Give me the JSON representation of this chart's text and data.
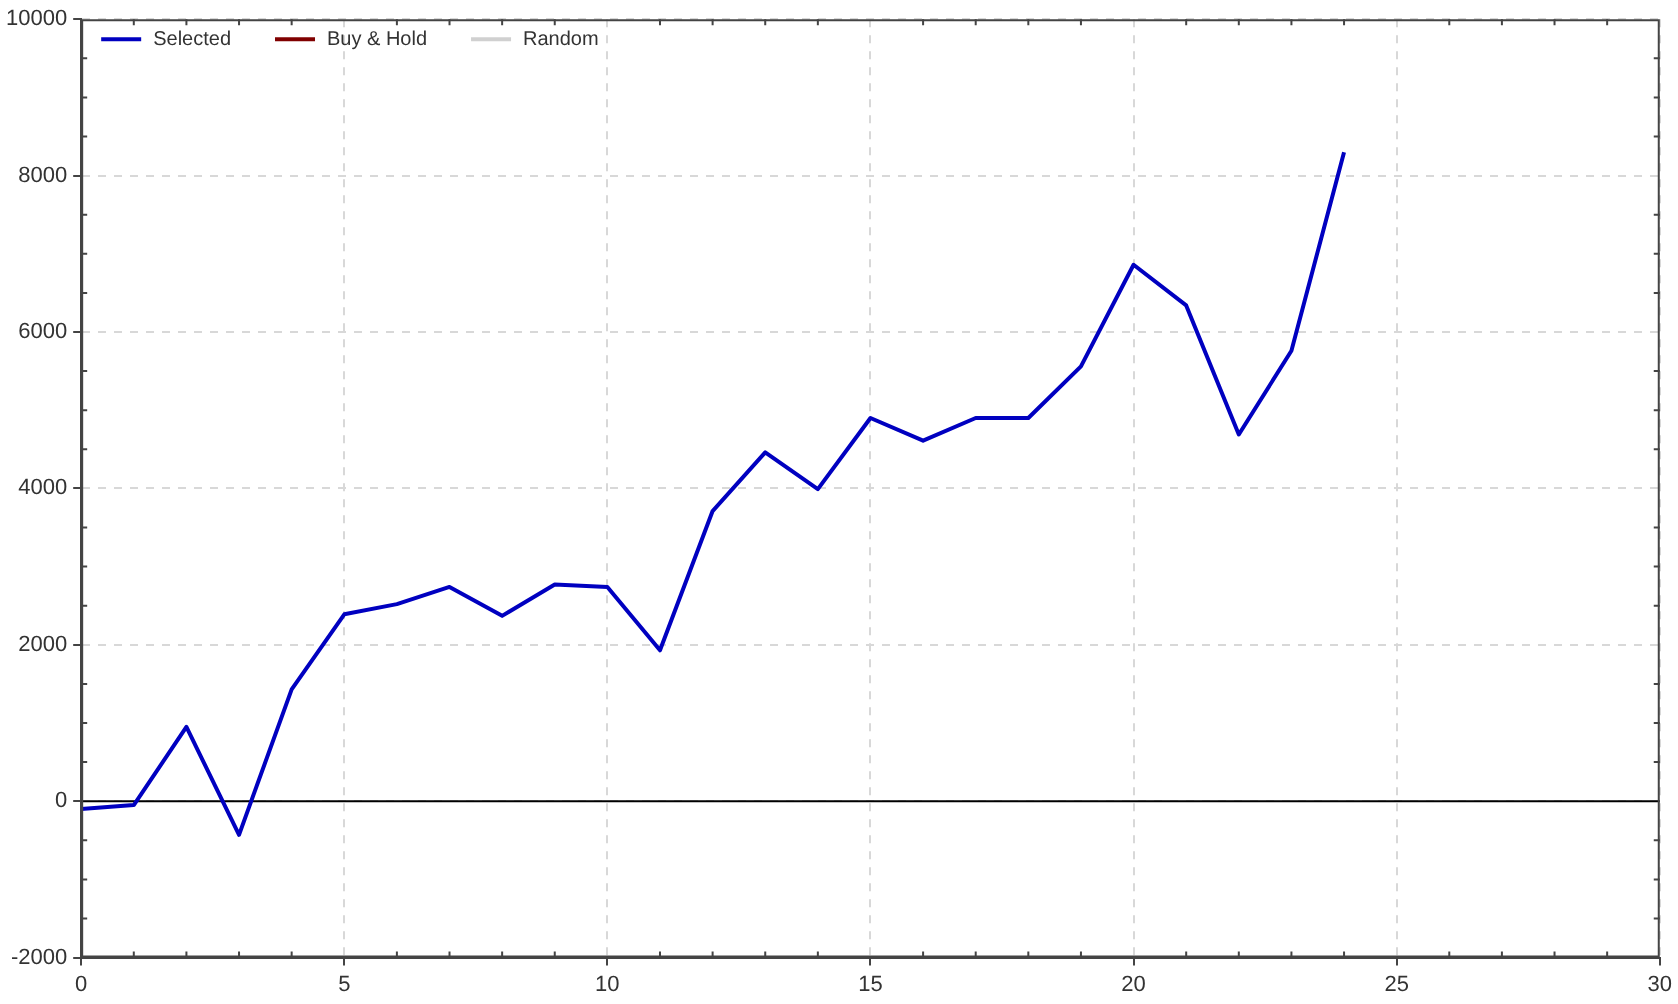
{
  "chart_data": {
    "type": "line",
    "x": [
      0,
      1,
      2,
      3,
      4,
      5,
      6,
      7,
      8,
      9,
      10,
      11,
      12,
      13,
      14,
      15,
      16,
      17,
      18,
      19,
      20,
      21,
      22,
      23,
      24
    ],
    "series": [
      {
        "name": "Selected",
        "color": "#0000c0",
        "values": [
          -100,
          -50,
          950,
          -430,
          1430,
          2390,
          2520,
          2740,
          2370,
          2770,
          2740,
          1930,
          3710,
          4460,
          3990,
          4900,
          4610,
          4900,
          4900,
          5560,
          6860,
          6340,
          4690,
          5760,
          8300
        ]
      },
      {
        "name": "Buy & Hold",
        "color": "#800000",
        "values": [
          null,
          null,
          null,
          null,
          null,
          null,
          null,
          null,
          null,
          null,
          null,
          null,
          null,
          null,
          null,
          null,
          null,
          null,
          null,
          null,
          null,
          null,
          null,
          null,
          null
        ]
      },
      {
        "name": "Random",
        "color": "#d0d0d0",
        "values": [
          null,
          null,
          null,
          null,
          null,
          null,
          null,
          null,
          null,
          null,
          null,
          null,
          null,
          null,
          null,
          null,
          null,
          null,
          null,
          null,
          null,
          null,
          null,
          null,
          null
        ]
      }
    ],
    "xlim": [
      0,
      30
    ],
    "xticks": [
      0,
      5,
      10,
      15,
      20,
      25,
      30
    ],
    "ylim": [
      -2000,
      10000
    ],
    "yticks": [
      -2000,
      0,
      2000,
      4000,
      6000,
      8000,
      10000
    ],
    "ref_lines": [
      {
        "axis": "y",
        "value": 0,
        "color": "#000000"
      }
    ],
    "grid": true,
    "legend": "top left",
    "marker": "none",
    "line_style": "solid"
  }
}
